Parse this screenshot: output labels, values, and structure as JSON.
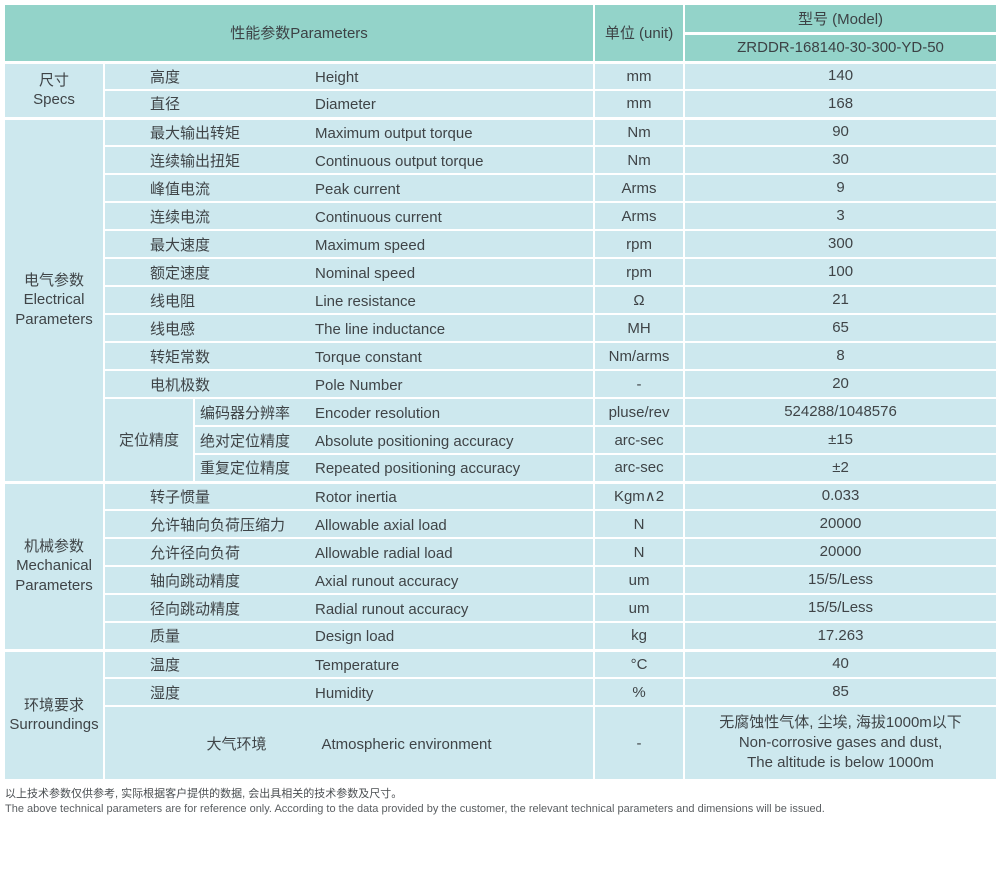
{
  "colors": {
    "header_bg": "#93d3c9",
    "cell_bg": "#cde8ee",
    "grid": "#ffffff",
    "text": "#3f4447"
  },
  "header": {
    "parameters_label": "性能参数Parameters",
    "unit_label": "单位 (unit)",
    "model_label": "型号 (Model)",
    "model_value": "ZRDDR-168140-30-300-YD-50"
  },
  "sections": [
    {
      "id": "specs",
      "group_cn": "尺寸",
      "group_en": "Specs",
      "rows": [
        {
          "cn": "高度",
          "en": "Height",
          "unit": "mm",
          "value": "140"
        },
        {
          "cn": "直径",
          "en": "Diameter",
          "unit": "mm",
          "value": "168"
        }
      ]
    },
    {
      "id": "electrical",
      "group_cn": "电气参数",
      "group_en": "Electrical Parameters",
      "rows": [
        {
          "cn": "最大输出转矩",
          "en": "Maximum output torque",
          "unit": "Nm",
          "value": "90"
        },
        {
          "cn": "连续输出扭矩",
          "en": "Continuous output torque",
          "unit": "Nm",
          "value": "30"
        },
        {
          "cn": "峰值电流",
          "en": "Peak current",
          "unit": "Arms",
          "value": "9"
        },
        {
          "cn": "连续电流",
          "en": "Continuous current",
          "unit": "Arms",
          "value": "3"
        },
        {
          "cn": "最大速度",
          "en": "Maximum speed",
          "unit": "rpm",
          "value": "300"
        },
        {
          "cn": "额定速度",
          "en": "Nominal speed",
          "unit": "rpm",
          "value": "100"
        },
        {
          "cn": "线电阻",
          "en": "Line resistance",
          "unit": "Ω",
          "value": "21"
        },
        {
          "cn": "线电感",
          "en": "The line inductance",
          "unit": "MH",
          "value": "65"
        },
        {
          "cn": "转矩常数",
          "en": "Torque constant",
          "unit": "Nm/arms",
          "value": "8"
        },
        {
          "cn": "电机极数",
          "en": "Pole Number",
          "unit": "-",
          "value": "20"
        },
        {
          "subgroup": "定位精度",
          "subgroup_span": 3,
          "sub": true,
          "cn": "编码器分辨率",
          "en": "Encoder resolution",
          "unit": "pluse/rev",
          "value": "524288/1048576"
        },
        {
          "sub": true,
          "cn": "绝对定位精度",
          "en": "Absolute positioning accuracy",
          "unit": "arc-sec",
          "value": "±15"
        },
        {
          "sub": true,
          "cn": "重复定位精度",
          "en": "Repeated positioning accuracy",
          "unit": "arc-sec",
          "value": "±2"
        }
      ]
    },
    {
      "id": "mechanical",
      "group_cn": "机械参数",
      "group_en": "Mechanical Parameters",
      "rows": [
        {
          "cn": "转子惯量",
          "en": "Rotor inertia",
          "unit": "Kgm∧2",
          "value": "0.033"
        },
        {
          "cn": "允许轴向负荷压缩力",
          "en": "Allowable axial load",
          "unit": "N",
          "value": "20000"
        },
        {
          "cn": "允许径向负荷",
          "en": "Allowable radial load",
          "unit": "N",
          "value": "20000"
        },
        {
          "cn": "轴向跳动精度",
          "en": "Axial runout accuracy",
          "unit": "um",
          "value": "15/5/Less"
        },
        {
          "cn": "径向跳动精度",
          "en": "Radial runout accuracy",
          "unit": "um",
          "value": "15/5/Less"
        },
        {
          "cn": "质量",
          "en": "Design load",
          "unit": "kg",
          "value": "17.263"
        }
      ]
    },
    {
      "id": "surroundings",
      "group_cn": "环境要求",
      "group_en": "Surroundings",
      "rows": [
        {
          "cn": "温度",
          "en": "Temperature",
          "unit": "°C",
          "value": "40"
        },
        {
          "cn": "湿度",
          "en": "Humidity",
          "unit": "%",
          "value": "85"
        },
        {
          "tall": true,
          "center": true,
          "cn": "大气环境",
          "en": "Atmospheric environment",
          "unit": "-",
          "value": "无腐蚀性气体, 尘埃, 海拔1000m以下\nNon-corrosive gases and dust,\nThe altitude is below 1000m"
        }
      ]
    }
  ],
  "footnotes": {
    "cn": "以上技术参数仅供参考, 实际根据客户提供的数据, 会出具相关的技术参数及尺寸。",
    "en": "The above technical parameters are for reference only. According to the data provided by the customer, the relevant technical parameters and dimensions will be issued."
  }
}
